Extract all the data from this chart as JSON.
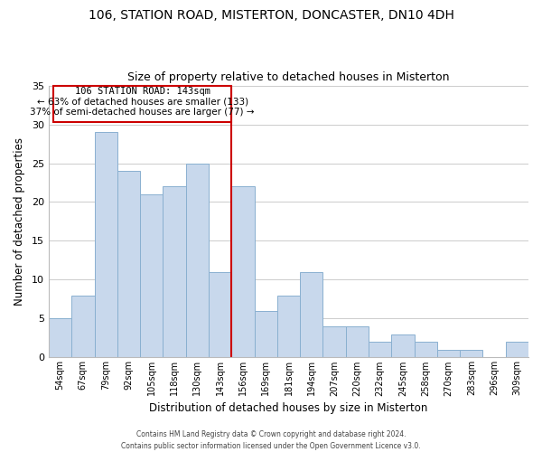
{
  "title1": "106, STATION ROAD, MISTERTON, DONCASTER, DN10 4DH",
  "title2": "Size of property relative to detached houses in Misterton",
  "xlabel": "Distribution of detached houses by size in Misterton",
  "ylabel": "Number of detached properties",
  "bar_labels": [
    "54sqm",
    "67sqm",
    "79sqm",
    "92sqm",
    "105sqm",
    "118sqm",
    "130sqm",
    "143sqm",
    "156sqm",
    "169sqm",
    "181sqm",
    "194sqm",
    "207sqm",
    "220sqm",
    "232sqm",
    "245sqm",
    "258sqm",
    "270sqm",
    "283sqm",
    "296sqm",
    "309sqm"
  ],
  "bar_heights": [
    5,
    8,
    29,
    24,
    21,
    22,
    25,
    11,
    22,
    6,
    8,
    11,
    4,
    4,
    2,
    3,
    2,
    1,
    1,
    0,
    2
  ],
  "bar_color": "#c8d8ec",
  "bar_edge_color": "#8ab0d0",
  "highlight_index": 7,
  "highlight_line_color": "#cc0000",
  "ylim": [
    0,
    35
  ],
  "yticks": [
    0,
    5,
    10,
    15,
    20,
    25,
    30,
    35
  ],
  "annotation_title": "106 STATION ROAD: 143sqm",
  "annotation_line1": "← 63% of detached houses are smaller (133)",
  "annotation_line2": "37% of semi-detached houses are larger (77) →",
  "footer1": "Contains HM Land Registry data © Crown copyright and database right 2024.",
  "footer2": "Contains public sector information licensed under the Open Government Licence v3.0.",
  "background_color": "#ffffff",
  "grid_color": "#cccccc"
}
